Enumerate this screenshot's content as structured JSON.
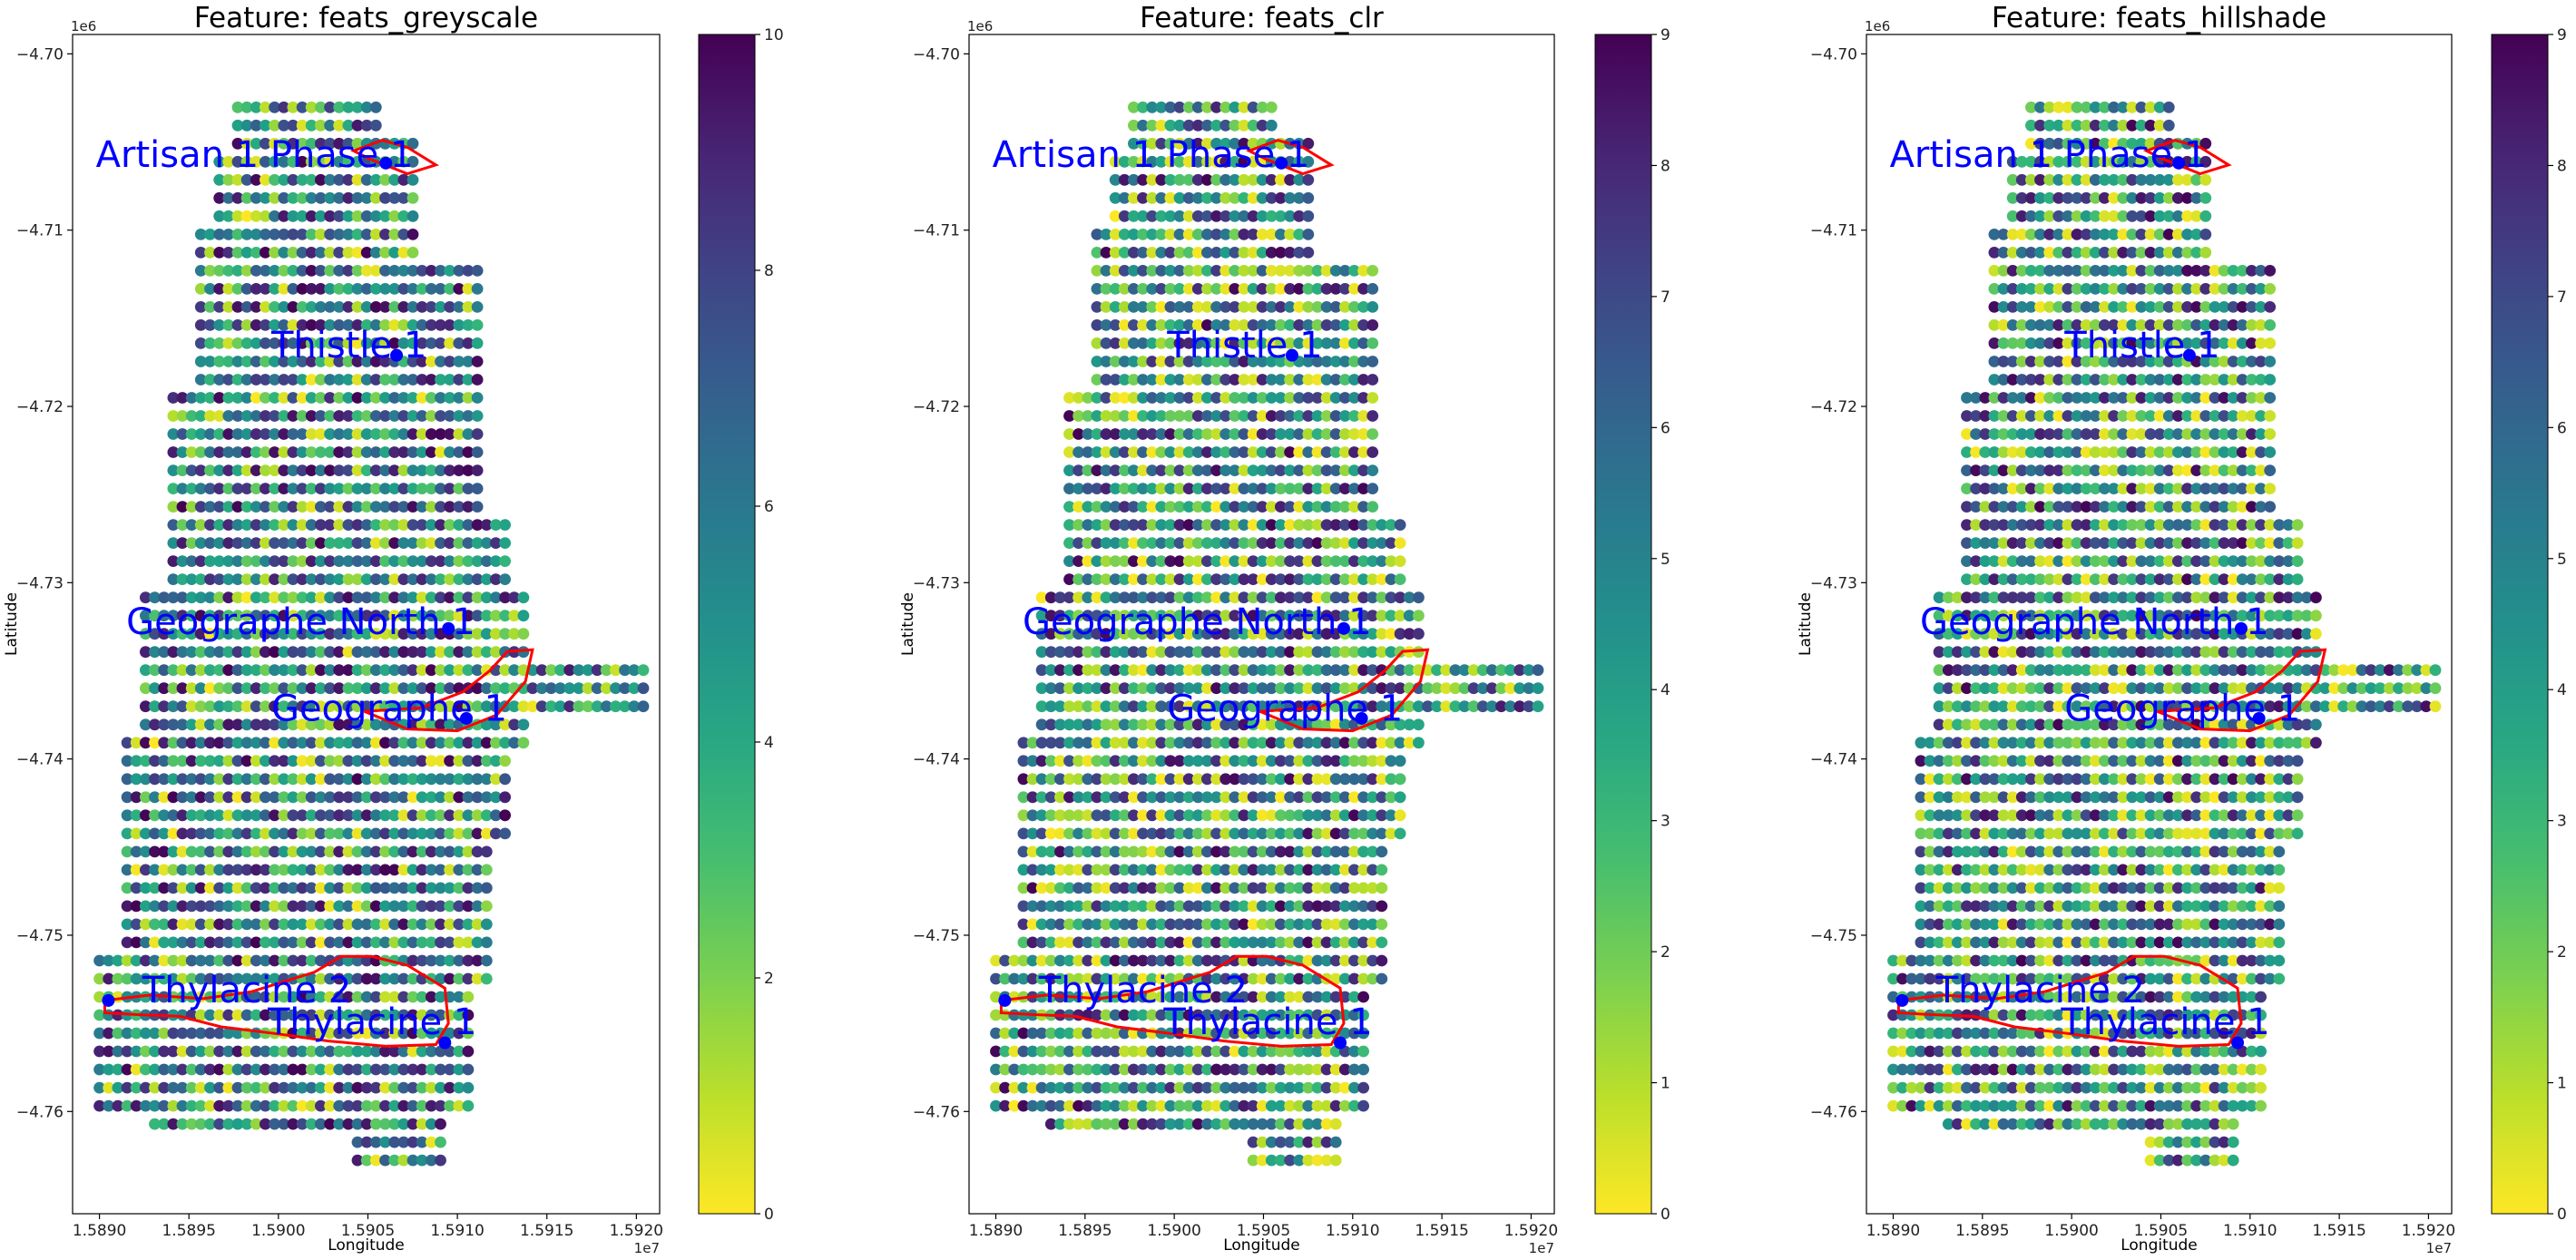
{
  "chart_data": [
    {
      "type": "scatter",
      "title": "Feature: feats_greyscale",
      "xlabel": "Longitude",
      "ylabel": "Latitude",
      "x_offset_label": "1e7",
      "y_offset_label": "1e6",
      "xlim": [
        1.58885,
        1.59213
      ],
      "ylim": [
        -4.7658,
        -4.6989
      ],
      "x_ticks": [
        1.589,
        1.5895,
        1.59,
        1.5905,
        1.591,
        1.5915,
        1.592
      ],
      "x_tick_labels": [
        "1.5890",
        "1.5895",
        "1.5900",
        "1.5905",
        "1.5910",
        "1.5915",
        "1.5920"
      ],
      "y_ticks": [
        -4.76,
        -4.75,
        -4.74,
        -4.73,
        -4.72,
        -4.71,
        -4.7
      ],
      "y_tick_labels": [
        "−4.76",
        "−4.75",
        "−4.74",
        "−4.73",
        "−4.72",
        "−4.71",
        "−4.70"
      ],
      "colorbar": {
        "cmap": "viridis_r",
        "min": 0,
        "max": 10,
        "ticks": [
          0,
          2,
          4,
          6,
          8,
          10
        ]
      },
      "grid": false,
      "seed": 11
    },
    {
      "type": "scatter",
      "title": "Feature: feats_clr",
      "xlabel": "Longitude",
      "ylabel": "Latitude",
      "x_offset_label": "1e7",
      "y_offset_label": "1e6",
      "xlim": [
        1.58885,
        1.59213
      ],
      "ylim": [
        -4.7658,
        -4.6989
      ],
      "x_ticks": [
        1.589,
        1.5895,
        1.59,
        1.5905,
        1.591,
        1.5915,
        1.592
      ],
      "x_tick_labels": [
        "1.5890",
        "1.5895",
        "1.5900",
        "1.5905",
        "1.5910",
        "1.5915",
        "1.5920"
      ],
      "y_ticks": [
        -4.76,
        -4.75,
        -4.74,
        -4.73,
        -4.72,
        -4.71,
        -4.7
      ],
      "y_tick_labels": [
        "−4.76",
        "−4.75",
        "−4.74",
        "−4.73",
        "−4.72",
        "−4.71",
        "−4.70"
      ],
      "colorbar": {
        "cmap": "viridis_r",
        "min": 0,
        "max": 9,
        "ticks": [
          0,
          1,
          2,
          3,
          4,
          5,
          6,
          7,
          8,
          9
        ]
      },
      "grid": false,
      "seed": 23
    },
    {
      "type": "scatter",
      "title": "Feature: feats_hillshade",
      "xlabel": "Longitude",
      "ylabel": "Latitude",
      "x_offset_label": "1e7",
      "y_offset_label": "1e6",
      "xlim": [
        1.58885,
        1.59213
      ],
      "ylim": [
        -4.7658,
        -4.6989
      ],
      "x_ticks": [
        1.589,
        1.5895,
        1.59,
        1.5905,
        1.591,
        1.5915,
        1.592
      ],
      "x_tick_labels": [
        "1.5890",
        "1.5895",
        "1.5900",
        "1.5905",
        "1.5910",
        "1.5915",
        "1.5920"
      ],
      "y_ticks": [
        -4.76,
        -4.75,
        -4.74,
        -4.73,
        -4.72,
        -4.71,
        -4.7
      ],
      "y_tick_labels": [
        "−4.76",
        "−4.75",
        "−4.74",
        "−4.73",
        "−4.72",
        "−4.71",
        "−4.70"
      ],
      "colorbar": {
        "cmap": "viridis_r",
        "min": 0,
        "max": 9,
        "ticks": [
          0,
          1,
          2,
          3,
          4,
          5,
          6,
          7,
          8,
          9
        ]
      },
      "grid": false,
      "seed": 37
    }
  ],
  "wells": [
    {
      "name": "Artisan 1 Phase 1",
      "x": 1.5906,
      "y": -4.7062
    },
    {
      "name": "Thistle 1",
      "x": 1.59066,
      "y": -4.7171
    },
    {
      "name": "Geographe North 1",
      "x": 1.59095,
      "y": -4.7326
    },
    {
      "name": "Geographe 1",
      "x": 1.59105,
      "y": -4.7377
    },
    {
      "name": "Thylacine 2",
      "x": 1.58905,
      "y": -4.7537
    },
    {
      "name": "Thylacine 1",
      "x": 1.59093,
      "y": -4.7561
    }
  ],
  "fields": [
    {
      "name": "Artisan",
      "outline": [
        [
          1.59042,
          -4.7055
        ],
        [
          1.59058,
          -4.7049
        ],
        [
          1.59072,
          -4.7053
        ],
        [
          1.59088,
          -4.7063
        ],
        [
          1.59072,
          -4.7068
        ],
        [
          1.59052,
          -4.706
        ]
      ]
    },
    {
      "name": "Geographe",
      "outline": [
        [
          1.59048,
          -4.7373
        ],
        [
          1.5908,
          -4.7371
        ],
        [
          1.59103,
          -4.7362
        ],
        [
          1.59118,
          -4.735
        ],
        [
          1.59128,
          -4.7339
        ],
        [
          1.59142,
          -4.7338
        ],
        [
          1.59138,
          -4.7356
        ],
        [
          1.59122,
          -4.7375
        ],
        [
          1.591,
          -4.7384
        ],
        [
          1.59072,
          -4.7383
        ]
      ]
    },
    {
      "name": "Thylacine",
      "outline": [
        [
          1.58903,
          -4.7537
        ],
        [
          1.58928,
          -4.7534
        ],
        [
          1.58958,
          -4.7536
        ],
        [
          1.58985,
          -4.7532
        ],
        [
          1.5902,
          -4.7521
        ],
        [
          1.59035,
          -4.7512
        ],
        [
          1.59052,
          -4.7512
        ],
        [
          1.59072,
          -4.7517
        ],
        [
          1.59093,
          -4.753
        ],
        [
          1.59095,
          -4.755
        ],
        [
          1.59088,
          -4.7562
        ],
        [
          1.5906,
          -4.7563
        ],
        [
          1.59028,
          -4.756
        ],
        [
          1.59,
          -4.7556
        ],
        [
          1.58968,
          -4.7552
        ],
        [
          1.58945,
          -4.7546
        ],
        [
          1.5892,
          -4.7545
        ],
        [
          1.58903,
          -4.7544
        ]
      ]
    }
  ],
  "colors": {
    "well": "#0000ff",
    "field": "#ff0000",
    "axis": "#000000"
  }
}
